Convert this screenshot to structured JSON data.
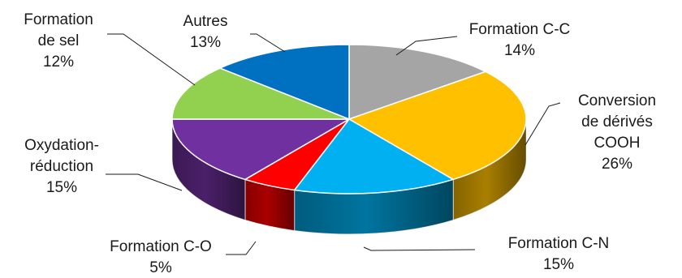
{
  "chart_data": {
    "type": "pie",
    "variant": "3d",
    "slices": [
      {
        "label_lines": [
          "Formation C-C"
        ],
        "value_text": "14%",
        "value": 14,
        "color": "#A5A5A5"
      },
      {
        "label_lines": [
          "Conversion",
          "de dérivés",
          "COOH"
        ],
        "value_text": "26%",
        "value": 26,
        "color": "#FFC000"
      },
      {
        "label_lines": [
          "Formation C-N"
        ],
        "value_text": "15%",
        "value": 15,
        "color": "#00B0F0"
      },
      {
        "label_lines": [
          "Formation C-O"
        ],
        "value_text": "5%",
        "value": 5,
        "color": "#FF0000"
      },
      {
        "label_lines": [
          "Oxydation-",
          "réduction"
        ],
        "value_text": "15%",
        "value": 15,
        "color": "#7030A0"
      },
      {
        "label_lines": [
          "Formation",
          "de sel"
        ],
        "value_text": "12%",
        "value": 12,
        "color": "#92D050"
      },
      {
        "label_lines": [
          "Autres"
        ],
        "value_text": "13%",
        "value": 13,
        "color": "#0070C0"
      }
    ]
  }
}
